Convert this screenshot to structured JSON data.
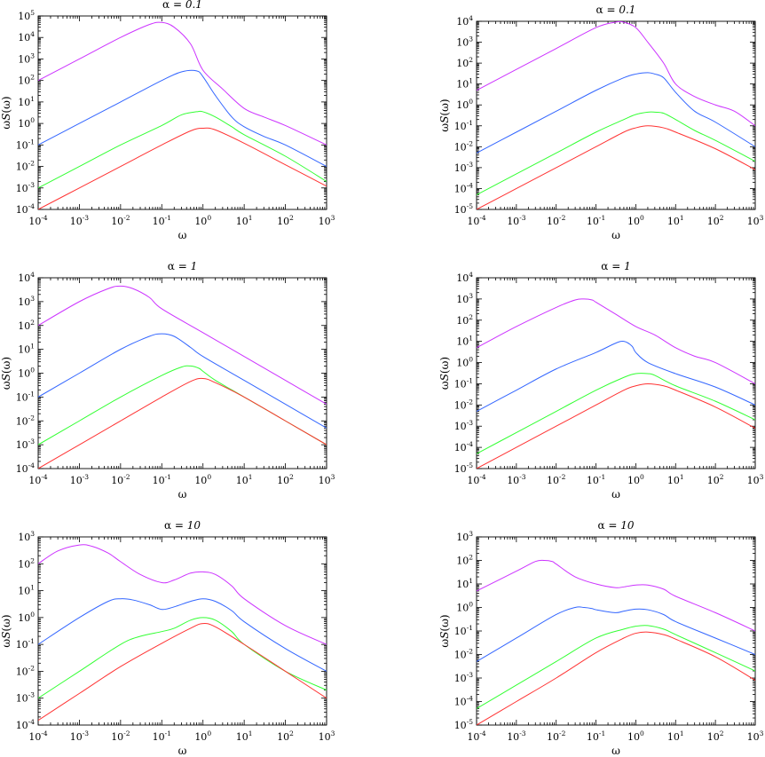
{
  "chart_data": [
    {
      "type": "line",
      "title_prefix": "α = ",
      "title_value": "0.1",
      "xlabel": "ω",
      "ylabel_prefix": "ω",
      "ylabel_italic": "S",
      "ylabel_suffix": "(ω)",
      "x_scale": "log",
      "y_scale": "log",
      "xlim": [
        0.0001,
        1000
      ],
      "ylim": [
        0.0001,
        100000
      ],
      "grid": false,
      "series": [
        {
          "color": "#cc33ff",
          "x": [
            0.0001,
            0.001,
            0.01,
            0.05,
            0.1,
            0.2,
            0.5,
            1,
            3,
            10,
            30,
            100,
            1000
          ],
          "y": [
            100,
            1000,
            10000,
            40000,
            50000,
            30000,
            5000,
            300,
            40,
            5,
            2,
            0.8,
            0.1
          ]
        },
        {
          "color": "#3366ff",
          "x": [
            0.0001,
            0.001,
            0.01,
            0.1,
            0.3,
            0.7,
            1,
            2,
            5,
            10,
            30,
            100,
            1000
          ],
          "y": [
            0.1,
            1,
            10,
            100,
            250,
            280,
            150,
            20,
            2,
            0.7,
            0.25,
            0.1,
            0.01
          ]
        },
        {
          "color": "#33ff33",
          "x": [
            0.0001,
            0.001,
            0.01,
            0.1,
            0.3,
            0.7,
            1,
            2,
            5,
            10,
            100,
            1000
          ],
          "y": [
            0.001,
            0.01,
            0.1,
            0.8,
            2.5,
            3.5,
            3.5,
            2,
            0.7,
            0.3,
            0.03,
            0.002
          ]
        },
        {
          "color": "#ff3333",
          "x": [
            0.0001,
            0.001,
            0.01,
            0.1,
            0.5,
            1,
            2,
            10,
            100,
            1000
          ],
          "y": [
            0.0001,
            0.001,
            0.01,
            0.1,
            0.45,
            0.6,
            0.5,
            0.12,
            0.012,
            0.0012
          ]
        }
      ]
    },
    {
      "type": "line",
      "title_prefix": "α = ",
      "title_value": "0.1",
      "xlabel": "ω",
      "ylabel_prefix": "ω",
      "ylabel_italic": "S",
      "ylabel_suffix": "(ω)",
      "x_scale": "log",
      "y_scale": "log",
      "xlim": [
        0.0001,
        1000
      ],
      "ylim": [
        1e-05,
        10000
      ],
      "grid": false,
      "series": [
        {
          "color": "#cc33ff",
          "x": [
            0.0001,
            0.001,
            0.01,
            0.1,
            0.3,
            0.5,
            1,
            2,
            5,
            10,
            30,
            100,
            300,
            1000
          ],
          "y": [
            5,
            50,
            500,
            5000,
            9000,
            9000,
            5000,
            1000,
            100,
            10,
            2.5,
            1,
            0.5,
            0.1
          ]
        },
        {
          "color": "#3366ff",
          "x": [
            0.0001,
            0.001,
            0.01,
            0.1,
            0.5,
            1,
            2,
            3,
            5,
            10,
            30,
            100,
            1000
          ],
          "y": [
            0.005,
            0.05,
            0.5,
            5,
            20,
            30,
            35,
            30,
            20,
            4,
            0.5,
            0.15,
            0.01
          ]
        },
        {
          "color": "#33ff33",
          "x": [
            0.0001,
            0.001,
            0.01,
            0.1,
            0.5,
            1,
            2,
            3,
            5,
            10,
            30,
            100,
            1000
          ],
          "y": [
            5e-05,
            0.0005,
            0.005,
            0.05,
            0.2,
            0.35,
            0.45,
            0.45,
            0.4,
            0.2,
            0.06,
            0.02,
            0.002
          ]
        },
        {
          "color": "#ff3333",
          "x": [
            0.0001,
            0.001,
            0.01,
            0.1,
            0.5,
            1,
            2,
            5,
            10,
            100,
            1000
          ],
          "y": [
            1e-05,
            0.0001,
            0.001,
            0.01,
            0.05,
            0.08,
            0.1,
            0.08,
            0.05,
            0.008,
            0.0008
          ]
        }
      ]
    },
    {
      "type": "line",
      "title_prefix": "α = ",
      "title_value": "1",
      "xlabel": "ω",
      "ylabel_prefix": "ω",
      "ylabel_italic": "S",
      "ylabel_suffix": "(ω)",
      "x_scale": "log",
      "y_scale": "log",
      "xlim": [
        0.0001,
        1000
      ],
      "ylim": [
        0.0001,
        10000
      ],
      "grid": false,
      "series": [
        {
          "color": "#cc33ff",
          "x": [
            0.0001,
            0.001,
            0.005,
            0.01,
            0.02,
            0.05,
            0.1,
            1,
            10,
            100,
            1000
          ],
          "y": [
            100,
            1000,
            3500,
            4500,
            3500,
            1500,
            500,
            50,
            5,
            0.5,
            0.05
          ]
        },
        {
          "color": "#3366ff",
          "x": [
            0.0001,
            0.001,
            0.01,
            0.05,
            0.1,
            0.2,
            0.5,
            1,
            10,
            100,
            1000
          ],
          "y": [
            0.1,
            1,
            10,
            35,
            45,
            35,
            12,
            5,
            0.5,
            0.05,
            0.005
          ]
        },
        {
          "color": "#33ff33",
          "x": [
            0.0001,
            0.001,
            0.01,
            0.1,
            0.3,
            0.5,
            0.8,
            1,
            2,
            10,
            100,
            1000
          ],
          "y": [
            0.001,
            0.01,
            0.1,
            0.8,
            1.8,
            2,
            1.6,
            1.2,
            0.5,
            0.1,
            0.01,
            0.001
          ]
        },
        {
          "color": "#ff3333",
          "x": [
            0.0001,
            0.001,
            0.01,
            0.1,
            0.5,
            1,
            2,
            10,
            100,
            1000
          ],
          "y": [
            0.0001,
            0.001,
            0.01,
            0.1,
            0.45,
            0.6,
            0.4,
            0.1,
            0.01,
            0.001
          ]
        }
      ]
    },
    {
      "type": "line",
      "title_prefix": "α = ",
      "title_value": "1",
      "xlabel": "ω",
      "ylabel_prefix": "ω",
      "ylabel_italic": "S",
      "ylabel_suffix": "(ω)",
      "x_scale": "log",
      "y_scale": "log",
      "xlim": [
        0.0001,
        1000
      ],
      "ylim": [
        1e-05,
        10000
      ],
      "grid": false,
      "series": [
        {
          "color": "#cc33ff",
          "x": [
            0.0001,
            0.001,
            0.01,
            0.03,
            0.05,
            0.08,
            0.1,
            0.3,
            1,
            3,
            10,
            30,
            100,
            1000
          ],
          "y": [
            5,
            50,
            400,
            900,
            1000,
            900,
            700,
            200,
            50,
            20,
            5,
            2,
            1,
            0.1
          ]
        },
        {
          "color": "#3366ff",
          "x": [
            0.0001,
            0.001,
            0.01,
            0.1,
            0.3,
            0.5,
            0.8,
            1,
            2,
            10,
            100,
            1000
          ],
          "y": [
            0.005,
            0.05,
            0.5,
            3,
            8,
            10,
            6,
            3,
            1,
            0.3,
            0.07,
            0.01
          ]
        },
        {
          "color": "#33ff33",
          "x": [
            0.0001,
            0.001,
            0.01,
            0.1,
            0.5,
            1,
            2,
            3,
            10,
            100,
            1000
          ],
          "y": [
            5e-05,
            0.0005,
            0.005,
            0.05,
            0.2,
            0.3,
            0.3,
            0.25,
            0.08,
            0.015,
            0.002
          ]
        },
        {
          "color": "#ff3333",
          "x": [
            0.0001,
            0.001,
            0.01,
            0.1,
            0.5,
            1,
            2,
            5,
            10,
            100,
            1000
          ],
          "y": [
            1e-05,
            0.0001,
            0.001,
            0.01,
            0.05,
            0.08,
            0.1,
            0.08,
            0.05,
            0.008,
            0.0008
          ]
        }
      ]
    },
    {
      "type": "line",
      "title_prefix": "α = ",
      "title_value": "10",
      "xlabel": "ω",
      "ylabel_prefix": "ω",
      "ylabel_italic": "S",
      "ylabel_suffix": "(ω)",
      "x_scale": "log",
      "y_scale": "log",
      "xlim": [
        0.0001,
        1000
      ],
      "ylim": [
        0.0001,
        1000
      ],
      "grid": false,
      "series": [
        {
          "color": "#cc33ff",
          "x": [
            0.0001,
            0.0003,
            0.001,
            0.002,
            0.005,
            0.01,
            0.03,
            0.1,
            0.2,
            0.5,
            1,
            2,
            5,
            10,
            100,
            1000
          ],
          "y": [
            100,
            300,
            500,
            450,
            250,
            120,
            40,
            20,
            25,
            45,
            50,
            40,
            15,
            5,
            0.5,
            0.1
          ]
        },
        {
          "color": "#3366ff",
          "x": [
            0.0001,
            0.001,
            0.005,
            0.01,
            0.02,
            0.05,
            0.1,
            0.2,
            0.5,
            1,
            2,
            5,
            10,
            100,
            1000
          ],
          "y": [
            0.1,
            1,
            4,
            5,
            4.5,
            3,
            2,
            2.5,
            4,
            5,
            4,
            1.8,
            0.7,
            0.07,
            0.01
          ]
        },
        {
          "color": "#33ff33",
          "x": [
            0.0001,
            0.001,
            0.01,
            0.03,
            0.1,
            0.2,
            0.5,
            1,
            2,
            5,
            10,
            100,
            1000
          ],
          "y": [
            0.001,
            0.01,
            0.1,
            0.2,
            0.3,
            0.4,
            0.8,
            1,
            0.8,
            0.3,
            0.1,
            0.01,
            0.002
          ]
        },
        {
          "color": "#ff3333",
          "x": [
            0.0001,
            0.001,
            0.01,
            0.1,
            0.5,
            1,
            2,
            10,
            100,
            1000
          ],
          "y": [
            0.00015,
            0.0015,
            0.015,
            0.11,
            0.4,
            0.6,
            0.45,
            0.1,
            0.01,
            0.001
          ]
        }
      ]
    },
    {
      "type": "line",
      "title_prefix": "α = ",
      "title_value": "10",
      "xlabel": "ω",
      "ylabel_prefix": "ω",
      "ylabel_italic": "S",
      "ylabel_suffix": "(ω)",
      "x_scale": "log",
      "y_scale": "log",
      "xlim": [
        0.0001,
        1000
      ],
      "ylim": [
        1e-05,
        1000
      ],
      "grid": false,
      "series": [
        {
          "color": "#cc33ff",
          "x": [
            0.0001,
            0.001,
            0.003,
            0.005,
            0.008,
            0.01,
            0.03,
            0.1,
            0.3,
            0.5,
            1,
            2,
            5,
            10,
            100,
            1000
          ],
          "y": [
            5,
            35,
            90,
            100,
            90,
            70,
            20,
            10,
            7,
            7.5,
            9,
            9,
            6,
            3,
            0.6,
            0.1
          ]
        },
        {
          "color": "#3366ff",
          "x": [
            0.0001,
            0.001,
            0.01,
            0.03,
            0.05,
            0.08,
            0.1,
            0.3,
            0.5,
            1,
            2,
            5,
            10,
            100,
            1000
          ],
          "y": [
            0.005,
            0.05,
            0.5,
            1,
            1,
            0.9,
            0.8,
            0.6,
            0.7,
            0.85,
            0.8,
            0.5,
            0.25,
            0.05,
            0.01
          ]
        },
        {
          "color": "#33ff33",
          "x": [
            0.0001,
            0.001,
            0.01,
            0.1,
            0.5,
            1,
            2,
            5,
            10,
            100,
            1000
          ],
          "y": [
            5e-05,
            0.0005,
            0.005,
            0.05,
            0.12,
            0.16,
            0.17,
            0.12,
            0.07,
            0.012,
            0.002
          ]
        },
        {
          "color": "#ff3333",
          "x": [
            0.0001,
            0.001,
            0.01,
            0.1,
            0.5,
            1,
            2,
            5,
            10,
            100,
            1000
          ],
          "y": [
            1e-05,
            0.0001,
            0.001,
            0.012,
            0.05,
            0.08,
            0.09,
            0.07,
            0.045,
            0.008,
            0.0008
          ]
        }
      ]
    }
  ]
}
